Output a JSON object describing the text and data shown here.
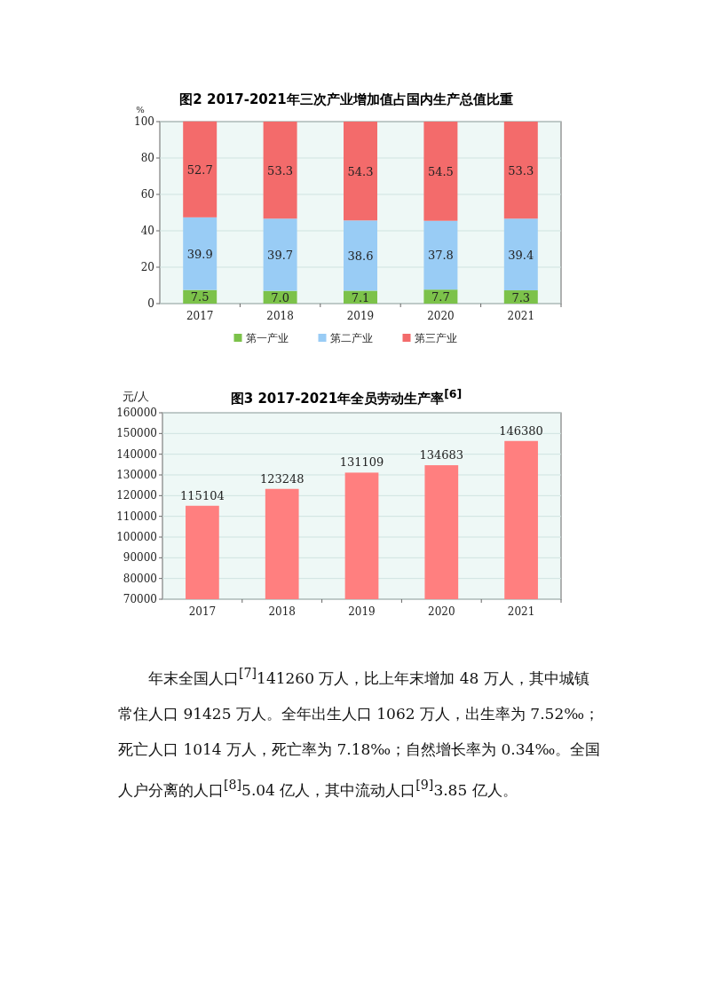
{
  "chart_data": [
    {
      "type": "bar",
      "stacked": true,
      "title": "图2  2017-2021年三次产业增加值占国内生产总值比重",
      "ylabel": "%",
      "categories": [
        "2017",
        "2018",
        "2019",
        "2020",
        "2021"
      ],
      "series": [
        {
          "name": "第一产业",
          "color": "#7cc24a",
          "values": [
            7.5,
            7.0,
            7.1,
            7.7,
            7.3
          ],
          "value_labels": [
            "7.5",
            "7.0",
            "7.1",
            "7.7",
            "7.3"
          ]
        },
        {
          "name": "第二产业",
          "color": "#99ccf5",
          "values": [
            39.9,
            39.7,
            38.6,
            37.8,
            39.4
          ]
        },
        {
          "name": "第三产业",
          "color": "#f36b6b",
          "values": [
            52.7,
            53.3,
            54.3,
            54.5,
            53.3
          ]
        }
      ],
      "ylim": [
        0,
        100
      ],
      "yticks": [
        0,
        20,
        40,
        60,
        80,
        100
      ],
      "grid": "y",
      "legend": "bottom",
      "data_labels": true
    },
    {
      "type": "bar",
      "title": "图3  2017-2021年全员劳动生产率$^{[6]}$",
      "ylabel": "元/人",
      "categories": [
        "2017",
        "2018",
        "2019",
        "2020",
        "2021"
      ],
      "values": [
        115104,
        123248,
        131109,
        134683,
        146380
      ],
      "color": "#ff7f7f",
      "ylim": [
        70000,
        160000
      ],
      "yticks": [
        70000,
        80000,
        90000,
        100000,
        110000,
        120000,
        130000,
        140000,
        150000,
        160000
      ],
      "grid": "y",
      "data_labels": true,
      "annotations": [
        "年末全国人口$^{[7]}$141260 万人，比上年末增加 48 万人，其中城镇常住人口 91425 万人。全年出生人口 1062 万人，出生率为 7.52‰；死亡人口 1014 万人，死亡率为 7.18‰；自然增长率为 0.34‰。全国人户分离的人口$^{[8]}$5.04 亿人，其中流动人口$^{[9]}$3.85 亿人。"
      ]
    }
  ]
}
